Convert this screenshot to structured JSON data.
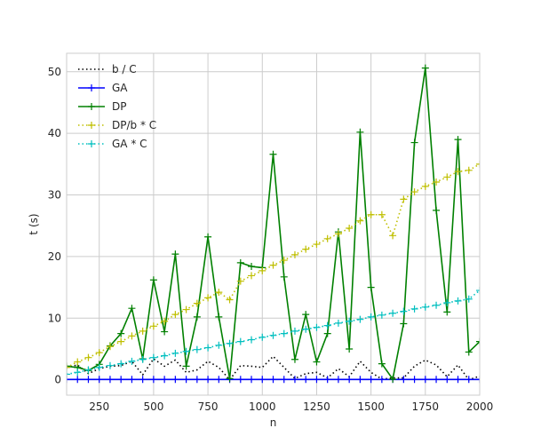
{
  "chart_data": {
    "type": "line",
    "title": "",
    "xlabel": "n",
    "ylabel": "t (s)",
    "xlim": [
      100,
      2000
    ],
    "ylim": [
      -2.5,
      53
    ],
    "xticks": [
      250,
      500,
      750,
      1000,
      1250,
      1500,
      1750,
      2000
    ],
    "yticks": [
      0,
      10,
      20,
      30,
      40,
      50
    ],
    "grid": true,
    "legend_position": "top-left",
    "x": [
      100,
      150,
      200,
      250,
      300,
      350,
      400,
      450,
      500,
      550,
      600,
      650,
      700,
      750,
      800,
      850,
      900,
      950,
      1000,
      1050,
      1100,
      1150,
      1200,
      1250,
      1300,
      1350,
      1400,
      1450,
      1500,
      1550,
      1600,
      1650,
      1700,
      1750,
      1800,
      1850,
      1900,
      1950,
      2000
    ],
    "series": [
      {
        "name": "b / C",
        "color": "#000000",
        "style": "dotted",
        "marker": "none",
        "values": [
          2.0,
          2.4,
          1.0,
          1.8,
          2.2,
          2.3,
          3.0,
          0.8,
          3.4,
          2.2,
          3.2,
          1.2,
          1.6,
          3.0,
          2.0,
          0.0,
          2.3,
          2.2,
          2.0,
          3.8,
          2.0,
          0.2,
          1.0,
          1.2,
          0.3,
          1.8,
          0.5,
          3.0,
          1.2,
          0.1,
          0.3,
          0.3,
          2.2,
          3.2,
          2.4,
          0.5,
          2.4,
          0.0,
          0.6
        ]
      },
      {
        "name": "GA",
        "color": "#0000ff",
        "style": "solid",
        "marker": "+",
        "values": [
          0.05,
          0.05,
          0.05,
          0.05,
          0.05,
          0.05,
          0.05,
          0.05,
          0.05,
          0.05,
          0.05,
          0.05,
          0.05,
          0.05,
          0.05,
          0.05,
          0.05,
          0.05,
          0.05,
          0.05,
          0.05,
          0.05,
          0.05,
          0.05,
          0.05,
          0.05,
          0.05,
          0.05,
          0.05,
          0.05,
          0.05,
          0.05,
          0.05,
          0.05,
          0.05,
          0.05,
          0.05,
          0.05,
          0.05
        ]
      },
      {
        "name": "DP",
        "color": "#008000",
        "style": "solid",
        "marker": "+",
        "values": [
          2.2,
          2.0,
          1.5,
          2.5,
          5.5,
          7.5,
          11.6,
          3.4,
          16.2,
          7.8,
          20.4,
          2.2,
          10.2,
          23.2,
          10.2,
          0.2,
          19.0,
          18.4,
          18.2,
          36.6,
          16.7,
          3.3,
          10.6,
          2.9,
          7.5,
          24.0,
          5.0,
          40.2,
          15.0,
          2.6,
          0.1,
          9.1,
          38.5,
          50.6,
          27.5,
          11.0,
          39.0,
          4.5,
          6.2
        ]
      },
      {
        "name": "DP/b * C",
        "color": "#bfbf00",
        "style": "dotted",
        "marker": "+",
        "values": [
          2.0,
          2.9,
          3.6,
          4.4,
          5.4,
          6.2,
          7.1,
          7.9,
          8.7,
          9.5,
          10.6,
          11.4,
          12.4,
          13.3,
          14.2,
          13.0,
          16.0,
          16.9,
          17.7,
          18.6,
          19.4,
          20.3,
          21.2,
          22.0,
          22.9,
          23.7,
          24.6,
          25.8,
          26.8,
          26.8,
          23.4,
          29.3,
          30.5,
          31.4,
          32.1,
          32.9,
          33.8,
          34.0,
          35.0
        ]
      },
      {
        "name": "GA * C",
        "color": "#00bfbf",
        "style": "dotted",
        "marker": "+",
        "values": [
          0.9,
          1.2,
          1.6,
          2.0,
          2.3,
          2.6,
          3.0,
          3.3,
          3.6,
          3.9,
          4.3,
          4.6,
          4.9,
          5.2,
          5.6,
          5.9,
          6.2,
          6.5,
          6.9,
          7.2,
          7.5,
          7.9,
          8.2,
          8.5,
          8.8,
          9.2,
          9.5,
          9.8,
          10.2,
          10.5,
          10.8,
          11.1,
          11.5,
          11.8,
          12.1,
          12.5,
          12.8,
          13.1,
          14.5
        ]
      }
    ]
  }
}
